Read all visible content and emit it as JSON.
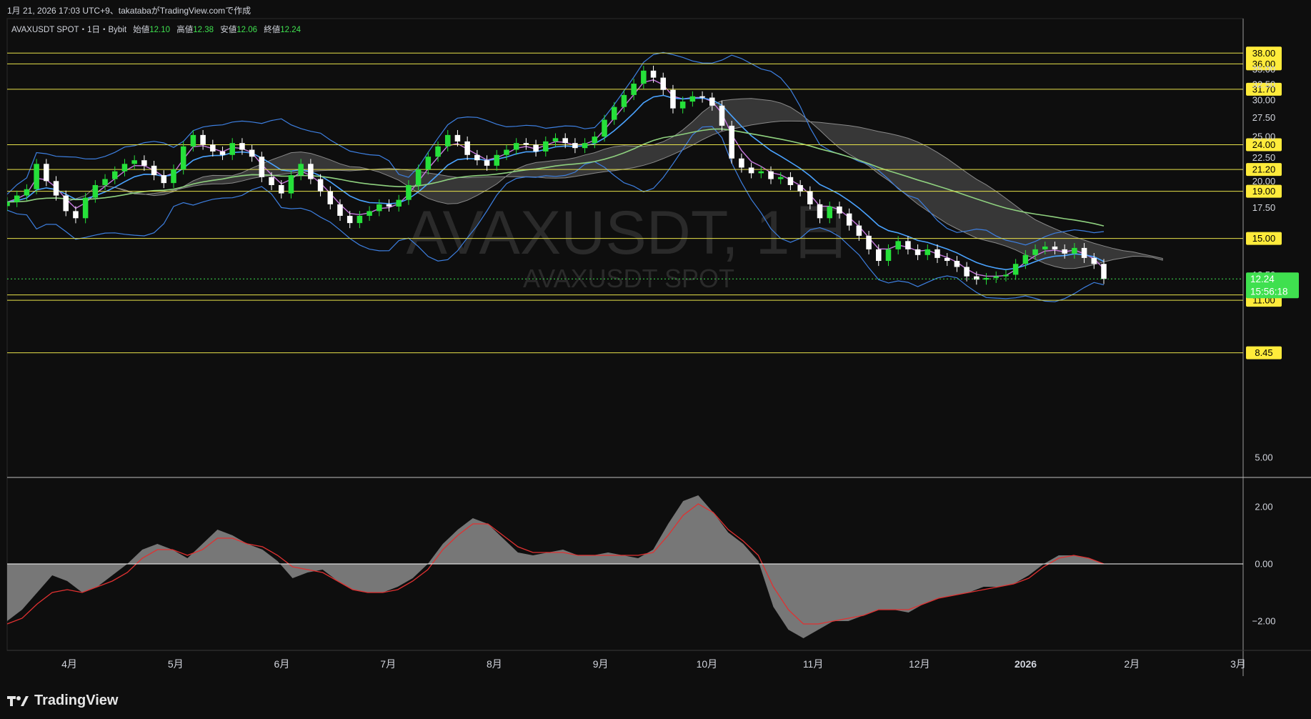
{
  "header": {
    "topline": "1月 21, 2026 17:03 UTC+9、takatabaがTradingView.comで作成",
    "legend": {
      "symbol": "AVAXUSDT SPOT",
      "sep1": "・",
      "interval": "1日",
      "sep2": "・",
      "exchange": "Bybit",
      "open_label": "始値",
      "open_value": "12.10",
      "high_label": "高値",
      "high_value": "12.38",
      "low_label": "安値",
      "low_value": "12.06",
      "close_label": "終値",
      "close_value": "12.24"
    }
  },
  "watermark": {
    "main": "AVAXUSDT, 1日",
    "sub": "AVAXUSDT SPOT"
  },
  "footer": {
    "brand": "TradingView",
    "logo_icon": "tradingview-logo-icon"
  },
  "colors": {
    "background": "#0e0e0e",
    "up_candle": "#26e03a",
    "down_candle": "#ffffff",
    "level_line": "#e8e24a",
    "level_label_bg": "#ffeb3b",
    "price_label_bg": "#3fe04f",
    "bollinger": "#3d7fe0",
    "ema_fast": "#c678dd",
    "ema_mid": "#4aa3ff",
    "ema_slow": "#8fd17f",
    "cloud": "#5a5a5a",
    "macd_hist": "#8a8a8a",
    "macd_signal": "#e03131"
  },
  "chart_data": [
    {
      "type": "line",
      "title": "AVAXUSDT, 1日",
      "xlabel": "",
      "ylabel": "",
      "log_scale": true,
      "ylim": [
        5.0,
        40.0
      ],
      "x_ticks": [
        "4月",
        "5月",
        "6月",
        "7月",
        "8月",
        "9月",
        "10月",
        "11月",
        "12月",
        "2026",
        "2月",
        "3月"
      ],
      "y_ticks": [
        "5.00",
        "12.50",
        "17.50",
        "20.00",
        "22.50",
        "25.00",
        "27.50",
        "30.00",
        "32.50",
        "35.00"
      ],
      "horizontal_levels": [
        38.0,
        36.0,
        31.7,
        24.0,
        21.2,
        19.0,
        15.0,
        11.3,
        11.0,
        8.45
      ],
      "horizontal_level_labels": [
        "38.00",
        "36.00",
        "31.70",
        "24.00",
        "21.20",
        "19.00",
        "15.00",
        "11.30",
        "11.00",
        "8.45"
      ],
      "last_price": "12.24",
      "countdown": "15:56:18",
      "series": [
        {
          "values": [
            18.0,
            18.6,
            19.2,
            21.8,
            20.0,
            18.6,
            17.2,
            16.6,
            18.4,
            19.6,
            20.2,
            21.0,
            21.8,
            22.2,
            21.6,
            20.6,
            19.8,
            21.2,
            23.8,
            25.2,
            24.0,
            23.2,
            22.8,
            24.2,
            23.4,
            22.6,
            20.4,
            19.6,
            18.8,
            20.6,
            21.8,
            20.2,
            19.0,
            17.8,
            16.8,
            16.2,
            16.8,
            17.2,
            17.8,
            17.6,
            18.2,
            19.6,
            21.2,
            22.6,
            23.8,
            25.2,
            24.4,
            22.8,
            22.2,
            21.6,
            22.8,
            23.4,
            24.2,
            24.0,
            23.2,
            24.4,
            24.8,
            24.2,
            23.6,
            24.2,
            25.0,
            27.2,
            29.0,
            30.8,
            32.6,
            34.8,
            33.6,
            31.6,
            28.8,
            29.8,
            30.6,
            30.4,
            29.2,
            26.4,
            22.4,
            21.4,
            20.8,
            21.0,
            20.2,
            20.4,
            19.6,
            19.0,
            17.8,
            16.6,
            17.6,
            17.0,
            16.0,
            15.2,
            14.2,
            13.4,
            14.2,
            14.8,
            14.2,
            13.8,
            14.2,
            13.6,
            13.4,
            13.0,
            12.4,
            12.2,
            12.3,
            12.4,
            12.5,
            13.2,
            13.8,
            14.2,
            14.4,
            14.2,
            13.9,
            14.3,
            13.6,
            13.2,
            12.24
          ]
        }
      ]
    },
    {
      "type": "area",
      "title": "",
      "xlabel": "",
      "ylabel": "",
      "ylim": [
        -3.0,
        3.0
      ],
      "y_ticks": [
        "2.00",
        "0.00",
        "−2.00"
      ],
      "series": [
        {
          "values": [
            -2.0,
            -1.6,
            -1.0,
            -0.4,
            -0.6,
            -1.0,
            -0.8,
            -0.4,
            0.0,
            0.5,
            0.7,
            0.5,
            0.2,
            0.7,
            1.2,
            1.0,
            0.7,
            0.5,
            0.1,
            -0.5,
            -0.3,
            -0.2,
            -0.6,
            -0.9,
            -1.0,
            -1.0,
            -0.8,
            -0.5,
            0.0,
            0.7,
            1.2,
            1.6,
            1.4,
            0.9,
            0.4,
            0.3,
            0.4,
            0.5,
            0.3,
            0.3,
            0.4,
            0.3,
            0.2,
            0.5,
            1.4,
            2.2,
            2.4,
            1.8,
            1.1,
            0.7,
            0.1,
            -1.5,
            -2.3,
            -2.6,
            -2.3,
            -2.0,
            -2.0,
            -1.8,
            -1.6,
            -1.6,
            -1.7,
            -1.4,
            -1.2,
            -1.1,
            -1.0,
            -0.8,
            -0.8,
            -0.7,
            -0.4,
            0.0,
            0.3,
            0.3,
            0.2,
            0.0
          ]
        },
        {
          "values": [
            -2.1,
            -1.9,
            -1.4,
            -1.0,
            -0.9,
            -1.0,
            -0.8,
            -0.6,
            -0.3,
            0.2,
            0.5,
            0.5,
            0.3,
            0.5,
            0.9,
            0.9,
            0.7,
            0.6,
            0.3,
            -0.1,
            -0.2,
            -0.3,
            -0.6,
            -0.9,
            -1.0,
            -1.0,
            -0.9,
            -0.6,
            -0.2,
            0.5,
            1.0,
            1.4,
            1.4,
            1.0,
            0.6,
            0.4,
            0.4,
            0.4,
            0.3,
            0.3,
            0.3,
            0.3,
            0.3,
            0.4,
            1.0,
            1.7,
            2.1,
            1.8,
            1.2,
            0.8,
            0.3,
            -0.8,
            -1.6,
            -2.1,
            -2.1,
            -2.0,
            -1.9,
            -1.8,
            -1.6,
            -1.6,
            -1.6,
            -1.4,
            -1.2,
            -1.1,
            -1.0,
            -0.9,
            -0.8,
            -0.7,
            -0.5,
            -0.1,
            0.2,
            0.3,
            0.2,
            0.0
          ]
        }
      ]
    }
  ]
}
